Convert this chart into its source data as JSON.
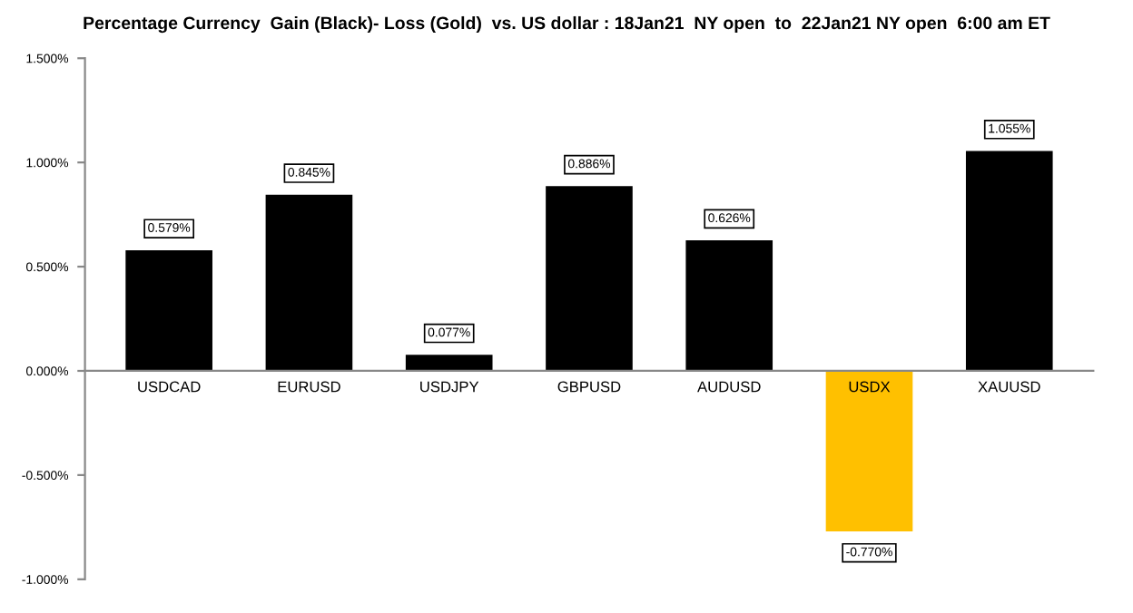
{
  "chart_data": {
    "type": "bar",
    "title": "Percentage Currency  Gain (Black)- Loss (Gold)  vs. US dollar : 18Jan21  NY open  to  22Jan21 NY open  6:00 am ET",
    "categories": [
      "USDCAD",
      "EURUSD",
      "USDJPY",
      "GBPUSD",
      "AUDUSD",
      "USDX",
      "XAUUSD"
    ],
    "values": [
      0.579,
      0.845,
      0.077,
      0.886,
      0.626,
      -0.77,
      1.055
    ],
    "colors": [
      "#000000",
      "#000000",
      "#000000",
      "#000000",
      "#000000",
      "#ffc000",
      "#000000"
    ],
    "value_labels": [
      "0.579%",
      "0.845%",
      "0.077%",
      "0.886%",
      "0.626%",
      "-0.770%",
      "1.055%"
    ],
    "ylim": [
      -1.0,
      1.5
    ],
    "yticks": [
      {
        "value": -1.0,
        "label": "-1.000%"
      },
      {
        "value": -0.5,
        "label": "-0.500%"
      },
      {
        "value": 0.0,
        "label": "0.000%"
      },
      {
        "value": 0.5,
        "label": "0.500%"
      },
      {
        "value": 1.0,
        "label": "1.000%"
      },
      {
        "value": 1.5,
        "label": "1.500%"
      }
    ],
    "grid": false,
    "legend": false
  }
}
